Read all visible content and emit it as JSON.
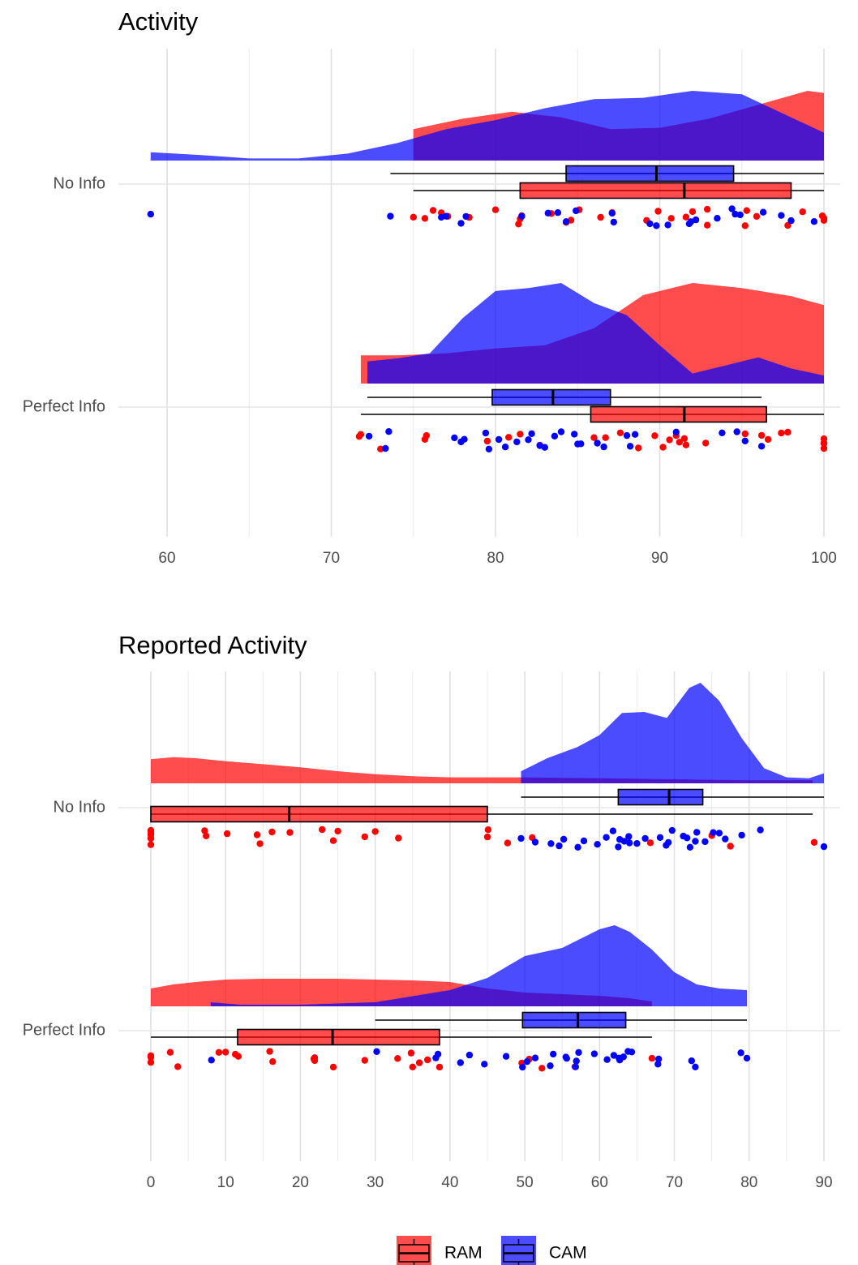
{
  "legend": {
    "items": [
      {
        "label": "RAM",
        "color": "#ff0000"
      },
      {
        "label": "CAM",
        "color": "#0000ff"
      }
    ]
  },
  "chart_data": [
    {
      "type": "raincloud",
      "title": "Activity",
      "xlabel": "",
      "ylabel": "",
      "xlim": [
        58,
        101
      ],
      "xticks": [
        60,
        70,
        80,
        90,
        100
      ],
      "grid": true,
      "categories": [
        "No Info",
        "Perfect Info"
      ],
      "series": [
        {
          "name": "RAM",
          "color": "#ff0000",
          "groups": [
            {
              "category": "No Info",
              "box": {
                "min": 75,
                "q1": 81.5,
                "median": 91.5,
                "q3": 98,
                "max": 100
              },
              "density": [
                [
                  75,
                  0.45
                ],
                [
                  78,
                  0.6
                ],
                [
                  81,
                  0.7
                ],
                [
                  84,
                  0.62
                ],
                [
                  87,
                  0.45
                ],
                [
                  90,
                  0.47
                ],
                [
                  93,
                  0.6
                ],
                [
                  96,
                  0.8
                ],
                [
                  99,
                  1.0
                ],
                [
                  100,
                  0.97
                ]
              ],
              "points": [
                75,
                75.7,
                76.2,
                76.7,
                77.1,
                78.4,
                80,
                81.4,
                81.5,
                81.6,
                83.4,
                84.3,
                84.6,
                85.1,
                86.4,
                87.1,
                89.2,
                89.9,
                90.7,
                91.6,
                92,
                92.9,
                92.9,
                95.2,
                95.3,
                95.9,
                97.8,
                98.7,
                99.9,
                100,
                100
              ]
            },
            {
              "category": "Perfect Info",
              "box": {
                "min": 71.8,
                "q1": 85.8,
                "median": 91.5,
                "q3": 96.5,
                "max": 100
              },
              "density": [
                [
                  71.8,
                  0.28
                ],
                [
                  74,
                  0.28
                ],
                [
                  77,
                  0.3
                ],
                [
                  80,
                  0.35
                ],
                [
                  83,
                  0.38
                ],
                [
                  86,
                  0.55
                ],
                [
                  89,
                  0.88
                ],
                [
                  92,
                  1.0
                ],
                [
                  95,
                  0.95
                ],
                [
                  98,
                  0.87
                ],
                [
                  100,
                  0.78
                ]
              ],
              "points": [
                71.7,
                71.8,
                73,
                75.7,
                75.8,
                79.5,
                80.8,
                81.5,
                82.7,
                86,
                86.7,
                87.6,
                88.7,
                89.7,
                90.2,
                90.6,
                91,
                91.2,
                91.5,
                91.6,
                92.8,
                95.2,
                96.2,
                96.6,
                97.4,
                97.8,
                100,
                100,
                100,
                100
              ]
            }
          ]
        },
        {
          "name": "CAM",
          "color": "#0000ff",
          "groups": [
            {
              "category": "No Info",
              "box": {
                "min": 73.6,
                "q1": 84.3,
                "median": 89.8,
                "q3": 94.5,
                "max": 100
              },
              "density": [
                [
                  59,
                  0.12
                ],
                [
                  62,
                  0.08
                ],
                [
                  65,
                  0.03
                ],
                [
                  68,
                  0.03
                ],
                [
                  71,
                  0.1
                ],
                [
                  74,
                  0.25
                ],
                [
                  77,
                  0.45
                ],
                [
                  80,
                  0.58
                ],
                [
                  83,
                  0.75
                ],
                [
                  86,
                  0.88
                ],
                [
                  89,
                  0.9
                ],
                [
                  92,
                  1.0
                ],
                [
                  95,
                  0.95
                ],
                [
                  98,
                  0.62
                ],
                [
                  100,
                  0.4
                ]
              ],
              "points": [
                59,
                73.6,
                76.7,
                77,
                77.9,
                78.2,
                81.6,
                83.2,
                83.8,
                84.3,
                84.9,
                87.1,
                87.2,
                89.4,
                89.8,
                90.5,
                91.8,
                91.9,
                92.2,
                93.5,
                94.4,
                94.6,
                94.9,
                96.3,
                97.4,
                98,
                99.4
              ]
            },
            {
              "category": "Perfect Info",
              "box": {
                "min": 72.2,
                "q1": 79.8,
                "median": 83.5,
                "q3": 87,
                "max": 96.2
              },
              "density": [
                [
                  72.2,
                  0.22
                ],
                [
                  74,
                  0.25
                ],
                [
                  76,
                  0.3
                ],
                [
                  78,
                  0.65
                ],
                [
                  80,
                  0.92
                ],
                [
                  82,
                  0.95
                ],
                [
                  84,
                  1.0
                ],
                [
                  86,
                  0.8
                ],
                [
                  88,
                  0.68
                ],
                [
                  90,
                  0.38
                ],
                [
                  92,
                  0.1
                ],
                [
                  94,
                  0.18
                ],
                [
                  96,
                  0.26
                ],
                [
                  98,
                  0.15
                ],
                [
                  100,
                  0.08
                ]
              ],
              "points": [
                72.3,
                73.3,
                73.5,
                77.5,
                77.9,
                78.1,
                79.4,
                79.6,
                80.2,
                80.6,
                81.3,
                82,
                82.2,
                82.7,
                83,
                83.6,
                84,
                84.8,
                85,
                85.2,
                86.2,
                86.6,
                88,
                88.2,
                88.5,
                91,
                93.8,
                94.7,
                95.2,
                96.2
              ]
            }
          ]
        }
      ]
    },
    {
      "type": "raincloud",
      "title": "Reported Activity",
      "xlabel": "",
      "ylabel": "",
      "xlim": [
        -2,
        92
      ],
      "xticks": [
        0,
        10,
        20,
        30,
        40,
        50,
        60,
        70,
        80,
        90
      ],
      "grid": true,
      "categories": [
        "No Info",
        "Perfect Info"
      ],
      "series": [
        {
          "name": "RAM",
          "color": "#ff0000",
          "groups": [
            {
              "category": "No Info",
              "box": {
                "min": 0,
                "q1": 0,
                "median": 18.5,
                "q3": 45,
                "max": 88.5
              },
              "density": [
                [
                  0,
                  0.24
                ],
                [
                  3,
                  0.26
                ],
                [
                  6,
                  0.25
                ],
                [
                  10,
                  0.22
                ],
                [
                  15,
                  0.19
                ],
                [
                  20,
                  0.16
                ],
                [
                  25,
                  0.12
                ],
                [
                  30,
                  0.09
                ],
                [
                  35,
                  0.07
                ],
                [
                  40,
                  0.06
                ],
                [
                  45,
                  0.06
                ],
                [
                  49.5,
                  0.06
                ]
              ],
              "density_tail": [
                [
                  49.5,
                  0.06
                ],
                [
                  60,
                  0.05
                ],
                [
                  70,
                  0.04
                ],
                [
                  80,
                  0.03
                ],
                [
                  88.5,
                  0.03
                ]
              ],
              "points": [
                0,
                0,
                0,
                0,
                0,
                0,
                7.2,
                7.4,
                10.2,
                14.2,
                14.6,
                16.2,
                18.6,
                22.9,
                24.4,
                25,
                28.6,
                30,
                33.1,
                45,
                45.1,
                47.7,
                51,
                66.8,
                75,
                77.5,
                88.7
              ]
            },
            {
              "category": "Perfect Info",
              "box": {
                "min": 0,
                "q1": 11.6,
                "median": 24.3,
                "q3": 38.6,
                "max": 67
              },
              "density": [
                [
                  0,
                  0.22
                ],
                [
                  3,
                  0.27
                ],
                [
                  6,
                  0.3
                ],
                [
                  10,
                  0.33
                ],
                [
                  15,
                  0.34
                ],
                [
                  20,
                  0.34
                ],
                [
                  25,
                  0.34
                ],
                [
                  30,
                  0.33
                ],
                [
                  35,
                  0.32
                ],
                [
                  40,
                  0.3
                ],
                [
                  45,
                  0.22
                ],
                [
                  50,
                  0.17
                ],
                [
                  55,
                  0.15
                ],
                [
                  60,
                  0.13
                ],
                [
                  64,
                  0.1
                ],
                [
                  67,
                  0.06
                ]
              ],
              "points": [
                0,
                0,
                0,
                2.6,
                3.6,
                9.1,
                10,
                11.3,
                11.7,
                15.9,
                16.3,
                21.8,
                21.9,
                21.9,
                24.4,
                28.6,
                33,
                34.8,
                35,
                35.9,
                37,
                38.6,
                49.6,
                50.6,
                52.3,
                56.7,
                67
              ]
            }
          ]
        },
        {
          "name": "CAM",
          "color": "#0000ff",
          "groups": [
            {
              "category": "No Info",
              "box": {
                "min": 49.5,
                "q1": 62.5,
                "median": 69.3,
                "q3": 73.8,
                "max": 90
              },
              "density": [
                [
                  49.5,
                  0.12
                ],
                [
                  53,
                  0.25
                ],
                [
                  57,
                  0.36
                ],
                [
                  60,
                  0.48
                ],
                [
                  63,
                  0.7
                ],
                [
                  66,
                  0.71
                ],
                [
                  69,
                  0.65
                ],
                [
                  72,
                  0.95
                ],
                [
                  73.5,
                  1.0
                ],
                [
                  76,
                  0.82
                ],
                [
                  79,
                  0.45
                ],
                [
                  82,
                  0.15
                ],
                [
                  85,
                  0.06
                ],
                [
                  88,
                  0.05
                ],
                [
                  90,
                  0.1
                ]
              ],
              "points": [
                49.5,
                51.4,
                53.5,
                54.6,
                55.2,
                57.1,
                57.9,
                59.7,
                60.9,
                61.8,
                62.5,
                62.7,
                63.3,
                63.9,
                64,
                65,
                66.1,
                68.1,
                68.9,
                69.2,
                69.7,
                71.2,
                71.7,
                72.1,
                72.8,
                73,
                74.1,
                75.2,
                76,
                76.8,
                79,
                81.5,
                90
              ]
            },
            {
              "category": "Perfect Info",
              "box": {
                "min": 30,
                "q1": 49.7,
                "median": 57.1,
                "q3": 63.5,
                "max": 79.7
              },
              "density": [
                [
                  8,
                  0.05
                ],
                [
                  12,
                  0.02
                ],
                [
                  20,
                  0.02
                ],
                [
                  30,
                  0.05
                ],
                [
                  40,
                  0.2
                ],
                [
                  45,
                  0.35
                ],
                [
                  50,
                  0.62
                ],
                [
                  55,
                  0.72
                ],
                [
                  60,
                  0.95
                ],
                [
                  62,
                  1.0
                ],
                [
                  64,
                  0.92
                ],
                [
                  67,
                  0.7
                ],
                [
                  70,
                  0.42
                ],
                [
                  73,
                  0.27
                ],
                [
                  76,
                  0.22
                ],
                [
                  79.7,
                  0.2
                ]
              ],
              "points": [
                8.1,
                30.2,
                38.1,
                38.4,
                41.4,
                42.6,
                44.6,
                47.5,
                49.7,
                50.3,
                51.4,
                53.4,
                53.8,
                55.5,
                55.6,
                56.8,
                56.9,
                57.2,
                59.3,
                61,
                61.9,
                62.6,
                62.7,
                63.2,
                63.8,
                64.3,
                67.8,
                67.9,
                72.3,
                72.8,
                78.9,
                79.7
              ]
            }
          ]
        }
      ]
    }
  ]
}
